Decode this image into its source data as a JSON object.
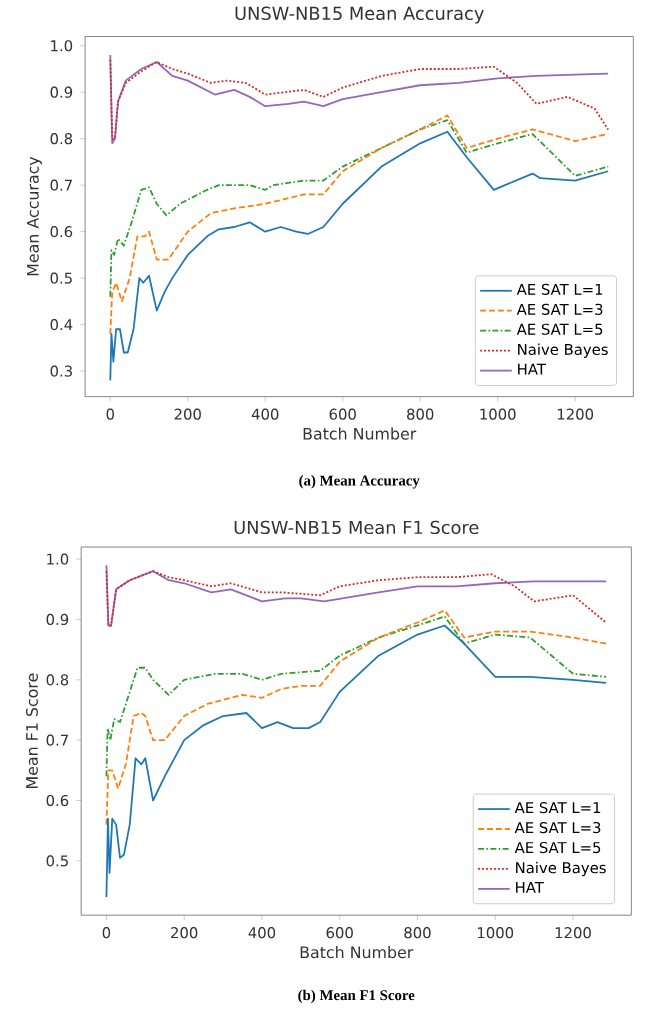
{
  "chart_data": [
    {
      "type": "line",
      "title": "UNSW-NB15 Mean Accuracy",
      "xlabel": "Batch Number",
      "ylabel": "Mean Accuracy",
      "annotations": [
        "(a) Mean Accuracy"
      ],
      "xlim": [
        -65,
        1350
      ],
      "ylim": [
        0.245,
        1.02
      ],
      "xticks": [
        0,
        200,
        400,
        600,
        800,
        1000,
        1200
      ],
      "yticks": [
        0.3,
        0.4,
        0.5,
        0.6,
        0.7,
        0.8,
        0.9,
        {
          "value": 1,
          "label": "1.0"
        }
      ],
      "legend": "bottom right",
      "grid": false,
      "series": [
        {
          "name": "AE SAT L=1",
          "color": "#1f77b4",
          "line_style": "solid",
          "x": [
            0,
            3,
            8,
            15,
            25,
            35,
            45,
            60,
            75,
            85,
            100,
            120,
            140,
            160,
            200,
            250,
            280,
            320,
            360,
            400,
            440,
            480,
            510,
            550,
            600,
            700,
            800,
            870,
            920,
            990,
            1090,
            1110,
            1200,
            1285
          ],
          "values": [
            0.28,
            0.38,
            0.32,
            0.39,
            0.39,
            0.34,
            0.34,
            0.39,
            0.5,
            0.49,
            0.505,
            0.43,
            0.47,
            0.5,
            0.55,
            0.59,
            0.605,
            0.61,
            0.62,
            0.6,
            0.61,
            0.6,
            0.595,
            0.61,
            0.66,
            0.74,
            0.79,
            0.815,
            0.76,
            0.69,
            0.725,
            0.715,
            0.71,
            0.73
          ]
        },
        {
          "name": "AE SAT L=3",
          "color": "#ff7f0e",
          "line_style": "dashed",
          "x": [
            0,
            5,
            15,
            30,
            50,
            70,
            90,
            100,
            120,
            150,
            200,
            260,
            320,
            400,
            450,
            500,
            550,
            600,
            700,
            800,
            870,
            920,
            1000,
            1090,
            1200,
            1285
          ],
          "values": [
            0.38,
            0.47,
            0.49,
            0.45,
            0.5,
            0.59,
            0.59,
            0.6,
            0.54,
            0.54,
            0.6,
            0.64,
            0.65,
            0.66,
            0.67,
            0.68,
            0.68,
            0.73,
            0.78,
            0.82,
            0.85,
            0.78,
            0.8,
            0.82,
            0.795,
            0.81
          ]
        },
        {
          "name": "AE SAT L=5",
          "color": "#2ca02c",
          "line_style": "dashdot",
          "x": [
            0,
            3,
            10,
            20,
            35,
            55,
            80,
            100,
            120,
            145,
            180,
            250,
            280,
            360,
            400,
            420,
            500,
            550,
            600,
            700,
            800,
            870,
            920,
            1000,
            1090,
            1200,
            1285
          ],
          "values": [
            0.46,
            0.56,
            0.55,
            0.585,
            0.57,
            0.62,
            0.69,
            0.695,
            0.66,
            0.635,
            0.66,
            0.69,
            0.7,
            0.7,
            0.69,
            0.7,
            0.71,
            0.71,
            0.74,
            0.78,
            0.82,
            0.84,
            0.77,
            0.79,
            0.81,
            0.72,
            0.74
          ]
        },
        {
          "name": "Naive Bayes",
          "color": "#d62728",
          "line_style": "dotted",
          "x": [
            0,
            5,
            12,
            20,
            40,
            80,
            120,
            160,
            200,
            260,
            300,
            350,
            400,
            450,
            500,
            550,
            600,
            700,
            800,
            900,
            990,
            1050,
            1100,
            1180,
            1250,
            1285
          ],
          "values": [
            0.97,
            0.8,
            0.8,
            0.88,
            0.92,
            0.945,
            0.965,
            0.95,
            0.94,
            0.92,
            0.925,
            0.92,
            0.895,
            0.9,
            0.905,
            0.89,
            0.91,
            0.935,
            0.95,
            0.95,
            0.955,
            0.92,
            0.875,
            0.89,
            0.865,
            0.82
          ]
        },
        {
          "name": "HAT",
          "color": "#9467bd",
          "line_style": "solid",
          "x": [
            0,
            5,
            12,
            20,
            40,
            80,
            120,
            160,
            200,
            270,
            320,
            360,
            400,
            460,
            500,
            550,
            600,
            700,
            800,
            900,
            1000,
            1100,
            1200,
            1285
          ],
          "values": [
            0.98,
            0.79,
            0.8,
            0.88,
            0.925,
            0.95,
            0.965,
            0.935,
            0.925,
            0.895,
            0.905,
            0.89,
            0.87,
            0.875,
            0.88,
            0.87,
            0.885,
            0.9,
            0.915,
            0.92,
            0.93,
            0.935,
            0.938,
            0.94
          ]
        }
      ]
    },
    {
      "type": "line",
      "title": "UNSW-NB15 Mean F1 Score",
      "xlabel": "Batch Number",
      "ylabel": "Mean F1 Score",
      "annotations": [
        "(b) Mean F1 Score"
      ],
      "xlim": [
        -65,
        1350
      ],
      "ylim": [
        0.41,
        1.02
      ],
      "xticks": [
        0,
        200,
        400,
        600,
        800,
        1000,
        1200
      ],
      "yticks": [
        0.5,
        0.6,
        0.7,
        0.8,
        0.9,
        {
          "value": 1,
          "label": "1.0"
        }
      ],
      "legend": "bottom right",
      "grid": false,
      "series": [
        {
          "name": "AE SAT L=1",
          "color": "#1f77b4",
          "line_style": "solid",
          "x": [
            0,
            4,
            8,
            15,
            25,
            35,
            45,
            60,
            75,
            90,
            100,
            120,
            150,
            200,
            250,
            300,
            360,
            400,
            440,
            480,
            520,
            550,
            600,
            700,
            800,
            870,
            920,
            1000,
            1090,
            1200,
            1285
          ],
          "values": [
            0.44,
            0.57,
            0.48,
            0.57,
            0.56,
            0.505,
            0.51,
            0.56,
            0.67,
            0.66,
            0.67,
            0.6,
            0.64,
            0.7,
            0.725,
            0.74,
            0.745,
            0.72,
            0.73,
            0.72,
            0.72,
            0.73,
            0.78,
            0.84,
            0.875,
            0.89,
            0.86,
            0.805,
            0.805,
            0.8,
            0.795
          ]
        },
        {
          "name": "AE SAT L=3",
          "color": "#ff7f0e",
          "line_style": "dashed",
          "x": [
            0,
            5,
            15,
            30,
            50,
            70,
            90,
            100,
            120,
            150,
            200,
            260,
            350,
            400,
            450,
            500,
            550,
            600,
            700,
            800,
            870,
            920,
            1000,
            1090,
            1200,
            1285
          ],
          "values": [
            0.56,
            0.65,
            0.65,
            0.62,
            0.66,
            0.74,
            0.745,
            0.74,
            0.7,
            0.7,
            0.74,
            0.76,
            0.775,
            0.77,
            0.785,
            0.79,
            0.79,
            0.83,
            0.87,
            0.895,
            0.915,
            0.87,
            0.88,
            0.88,
            0.87,
            0.86
          ]
        },
        {
          "name": "AE SAT L=5",
          "color": "#2ca02c",
          "line_style": "dashdot",
          "x": [
            0,
            3,
            10,
            20,
            35,
            55,
            80,
            100,
            120,
            160,
            200,
            280,
            350,
            400,
            450,
            550,
            600,
            700,
            800,
            870,
            920,
            1000,
            1090,
            1200,
            1285
          ],
          "values": [
            0.64,
            0.72,
            0.7,
            0.735,
            0.73,
            0.77,
            0.82,
            0.82,
            0.8,
            0.775,
            0.8,
            0.81,
            0.81,
            0.8,
            0.81,
            0.815,
            0.84,
            0.87,
            0.89,
            0.905,
            0.86,
            0.875,
            0.87,
            0.81,
            0.805
          ]
        },
        {
          "name": "Naive Bayes",
          "color": "#d62728",
          "line_style": "dotted",
          "x": [
            0,
            5,
            12,
            25,
            60,
            120,
            160,
            200,
            270,
            320,
            400,
            450,
            550,
            600,
            700,
            800,
            900,
            990,
            1050,
            1100,
            1200,
            1285
          ],
          "values": [
            0.98,
            0.89,
            0.89,
            0.95,
            0.965,
            0.98,
            0.97,
            0.965,
            0.955,
            0.96,
            0.945,
            0.945,
            0.94,
            0.955,
            0.965,
            0.97,
            0.97,
            0.975,
            0.955,
            0.93,
            0.94,
            0.895
          ]
        },
        {
          "name": "HAT",
          "color": "#9467bd",
          "line_style": "solid",
          "x": [
            0,
            5,
            12,
            25,
            60,
            120,
            160,
            200,
            270,
            320,
            400,
            460,
            500,
            560,
            700,
            800,
            900,
            1000,
            1100,
            1285
          ],
          "values": [
            0.99,
            0.89,
            0.89,
            0.95,
            0.965,
            0.98,
            0.965,
            0.96,
            0.945,
            0.95,
            0.93,
            0.935,
            0.935,
            0.93,
            0.945,
            0.955,
            0.955,
            0.96,
            0.963,
            0.963
          ]
        }
      ]
    }
  ]
}
